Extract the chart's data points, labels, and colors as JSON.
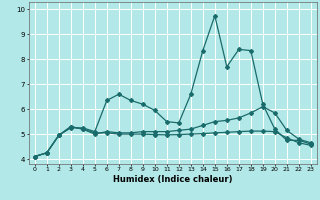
{
  "xlabel": "Humidex (Indice chaleur)",
  "background_color": "#b3e8e8",
  "grid_color": "#ffffff",
  "line_color": "#1a6b6b",
  "xlim": [
    -0.5,
    23.5
  ],
  "ylim": [
    3.8,
    10.3
  ],
  "xticks": [
    0,
    1,
    2,
    3,
    4,
    5,
    6,
    7,
    8,
    9,
    10,
    11,
    12,
    13,
    14,
    15,
    16,
    17,
    18,
    19,
    20,
    21,
    22,
    23
  ],
  "yticks": [
    4,
    5,
    6,
    7,
    8,
    9,
    10
  ],
  "series1_x": [
    0,
    1,
    2,
    3,
    4,
    5,
    6,
    7,
    8,
    9,
    10,
    11,
    12,
    13,
    14,
    15,
    16,
    17,
    18,
    19,
    20,
    21,
    22,
    23
  ],
  "series1_y": [
    4.1,
    4.25,
    4.95,
    5.25,
    5.25,
    5.1,
    6.35,
    6.6,
    6.35,
    6.2,
    5.95,
    5.5,
    5.45,
    6.6,
    8.35,
    9.75,
    7.7,
    8.4,
    8.35,
    6.2,
    5.2,
    4.75,
    4.75,
    4.6
  ],
  "series2_x": [
    0,
    1,
    2,
    3,
    4,
    5,
    6,
    7,
    8,
    9,
    10,
    11,
    12,
    13,
    14,
    15,
    16,
    17,
    18,
    19,
    20,
    21,
    22,
    23
  ],
  "series2_y": [
    4.1,
    4.25,
    4.95,
    5.3,
    5.2,
    5.0,
    5.1,
    5.05,
    5.05,
    5.1,
    5.1,
    5.1,
    5.15,
    5.2,
    5.35,
    5.5,
    5.55,
    5.65,
    5.85,
    6.1,
    5.85,
    5.15,
    4.8,
    4.65
  ],
  "series3_x": [
    0,
    1,
    2,
    3,
    4,
    5,
    6,
    7,
    8,
    9,
    10,
    11,
    12,
    13,
    14,
    15,
    16,
    17,
    18,
    19,
    20,
    21,
    22,
    23
  ],
  "series3_y": [
    4.1,
    4.25,
    4.95,
    5.3,
    5.2,
    5.05,
    5.05,
    5.0,
    5.0,
    5.0,
    4.98,
    4.97,
    4.98,
    5.0,
    5.02,
    5.05,
    5.07,
    5.1,
    5.12,
    5.12,
    5.1,
    4.85,
    4.65,
    4.55
  ],
  "markersize": 2.0,
  "linewidth": 0.9,
  "tick_fontsize": 4.5,
  "xlabel_fontsize": 6.0
}
